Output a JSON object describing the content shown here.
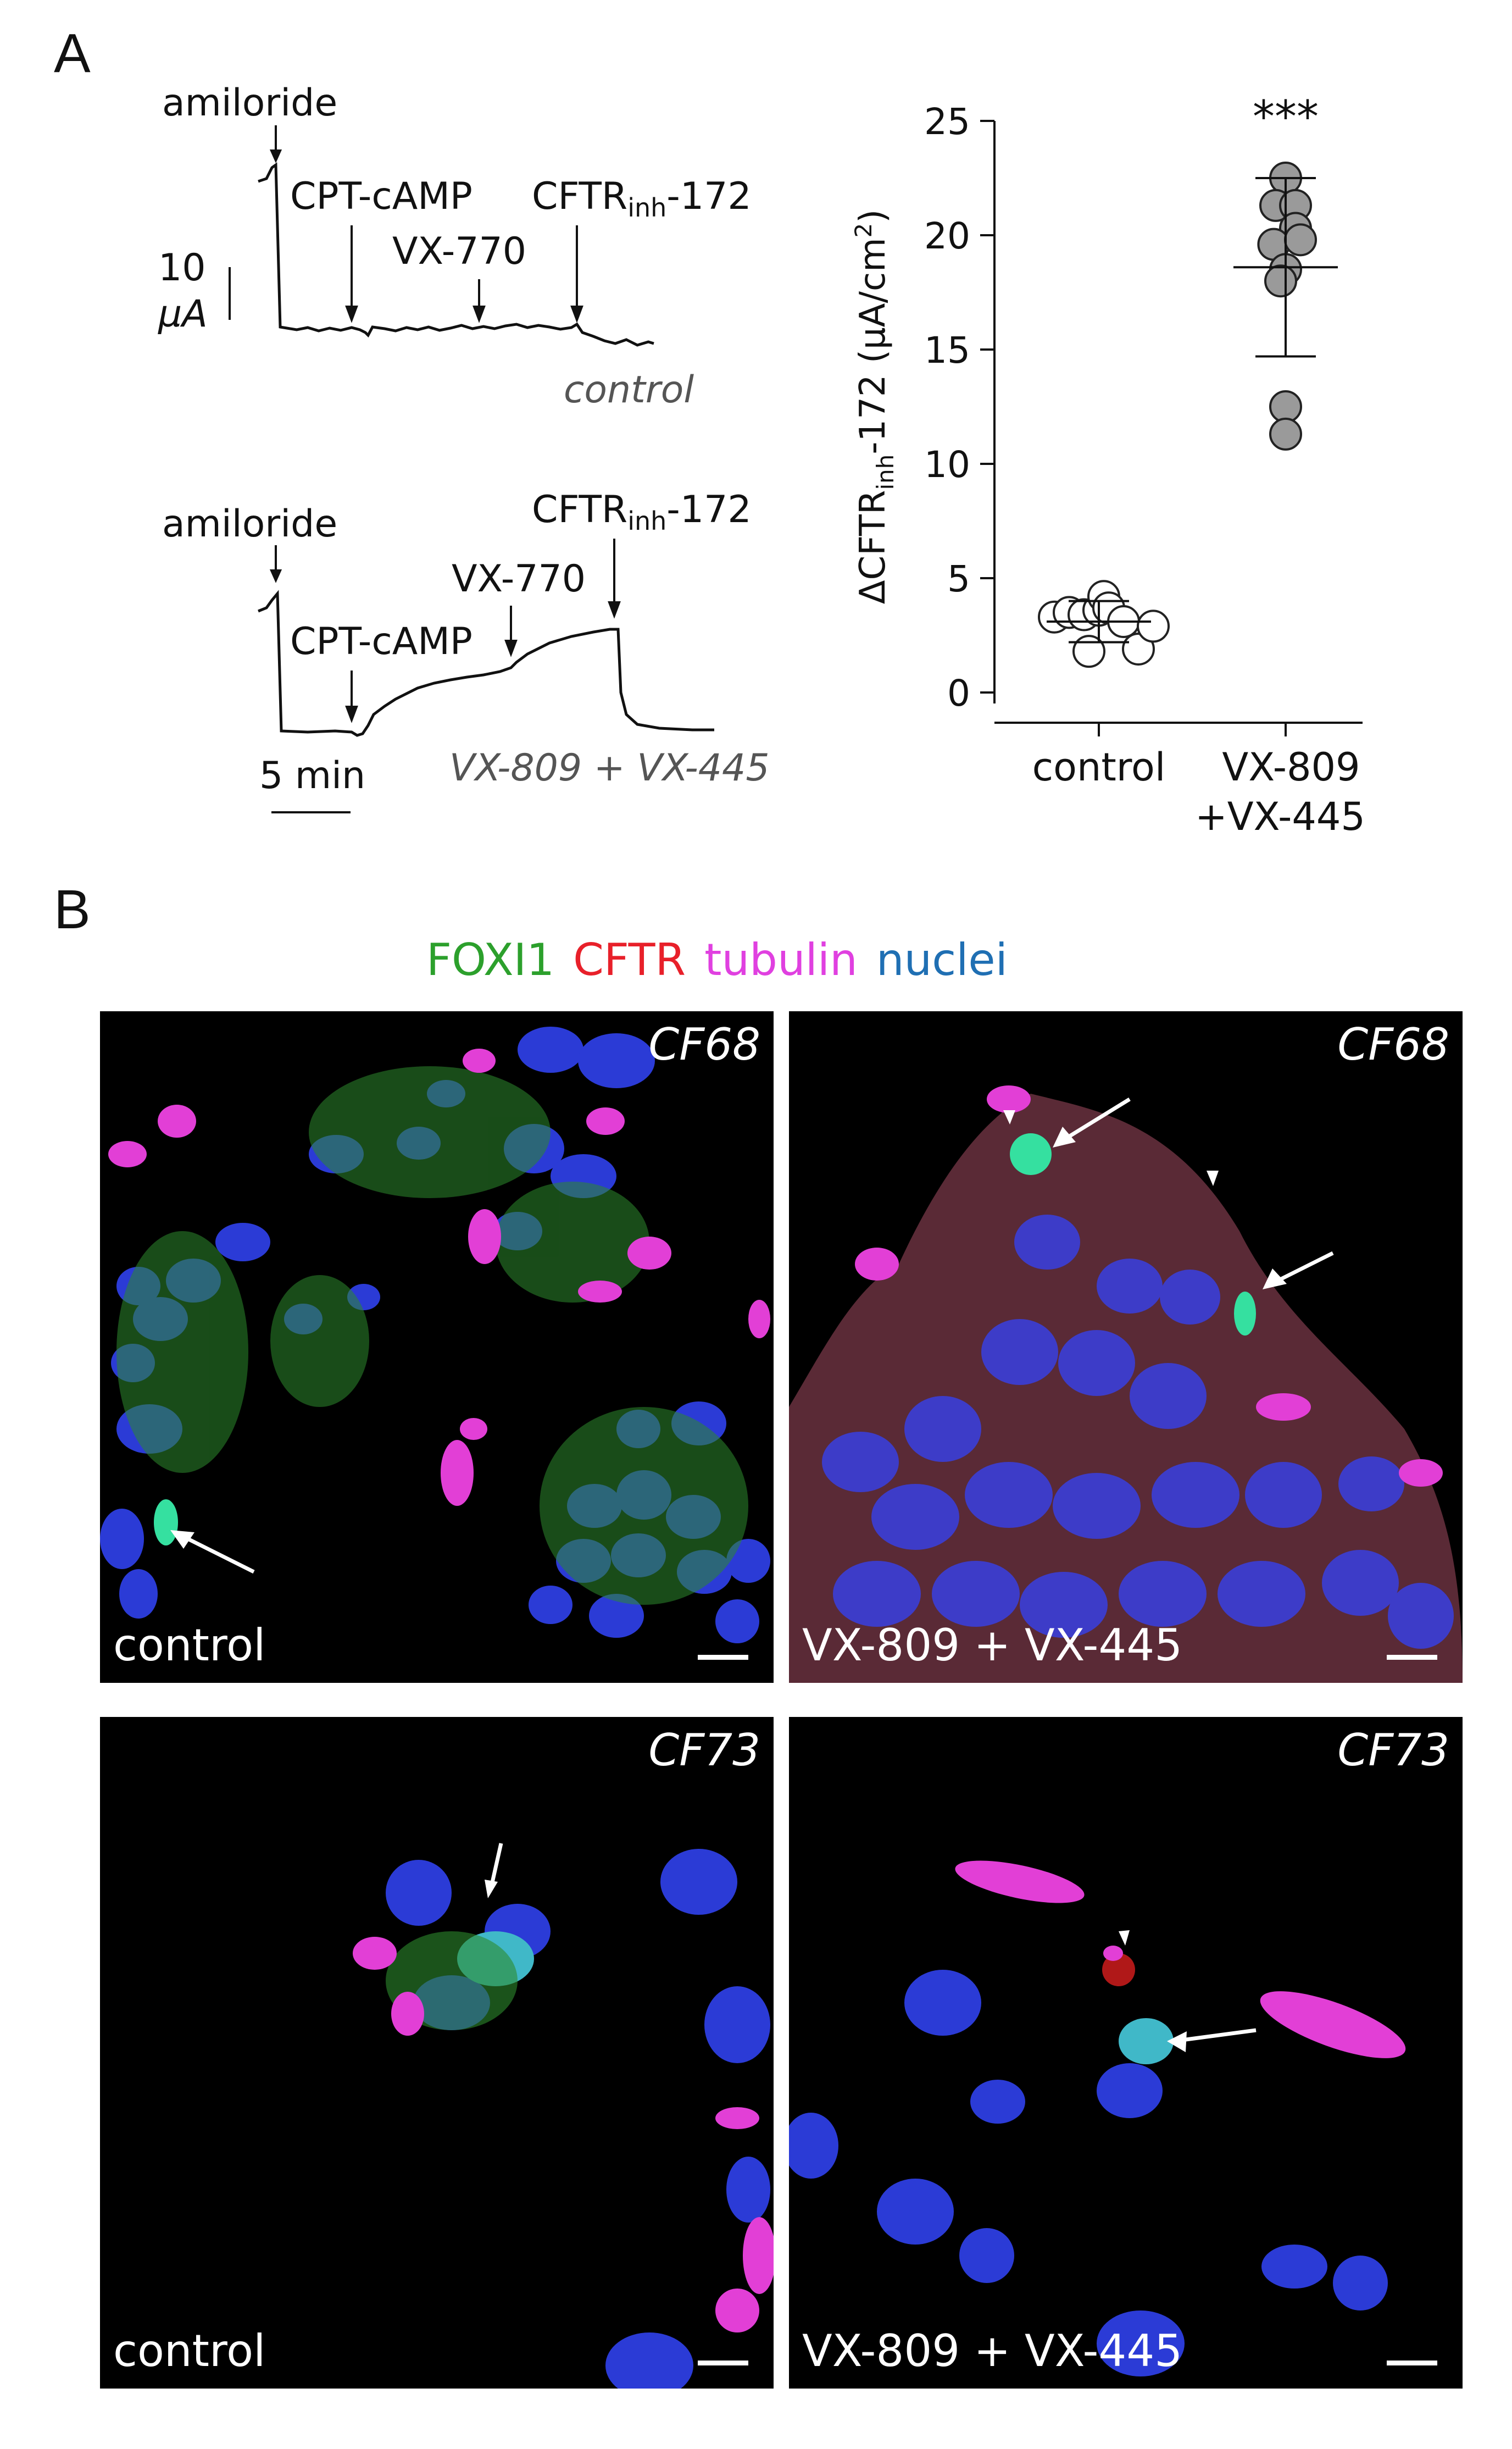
{
  "panel_a": {
    "letter": "A",
    "trace_top": {
      "amiloride": "amiloride",
      "cpt": "CPT-cAMP",
      "vx770": "VX-770",
      "cftr_main": "CFTR",
      "cftr_sub": "inh",
      "cftr_suffix": "-172",
      "condition": "control",
      "scale_current_value": "10",
      "scale_current_unit": "µA"
    },
    "trace_bottom": {
      "amiloride": "amiloride",
      "cpt": "CPT-cAMP",
      "vx770": "VX-770",
      "cftr_main": "CFTR",
      "cftr_sub": "inh",
      "cftr_suffix": "-172",
      "condition": "VX-809 + VX-445",
      "scale_time": "5 min"
    }
  },
  "chart_data": {
    "type": "scatter",
    "ylabel_prefix": "ΔCFTR",
    "ylabel_sub": "inh",
    "ylabel_suffix": "-172 (µA/cm",
    "ylabel_sup": "2",
    "ylabel_close": ")",
    "ylim": [
      0,
      25
    ],
    "yticks": [
      0,
      5,
      10,
      15,
      20,
      25
    ],
    "categories": [
      "control",
      "VX-809",
      "+VX-445"
    ],
    "significance": "***",
    "series": [
      {
        "name": "control",
        "fill": "#ffffff",
        "mean": 3.1,
        "sd": 0.9,
        "points": [
          {
            "x": -0.45,
            "y": 3.3
          },
          {
            "x": -0.3,
            "y": 3.5
          },
          {
            "x": -0.15,
            "y": 3.4
          },
          {
            "x": 0.0,
            "y": 3.6
          },
          {
            "x": 0.05,
            "y": 4.2
          },
          {
            "x": 0.1,
            "y": 3.7
          },
          {
            "x": 0.25,
            "y": 3.1
          },
          {
            "x": 0.4,
            "y": 1.9
          },
          {
            "x": -0.1,
            "y": 1.8
          },
          {
            "x": 0.55,
            "y": 2.9
          }
        ]
      },
      {
        "name": "VX-809 +VX-445",
        "fill": "#9a9a9a",
        "mean": 18.6,
        "sd": 3.9,
        "points": [
          {
            "x": 0.0,
            "y": 22.5
          },
          {
            "x": -0.1,
            "y": 21.3
          },
          {
            "x": 0.1,
            "y": 21.3
          },
          {
            "x": 0.1,
            "y": 20.3
          },
          {
            "x": -0.12,
            "y": 19.6
          },
          {
            "x": 0.15,
            "y": 19.8
          },
          {
            "x": 0.0,
            "y": 18.5
          },
          {
            "x": -0.05,
            "y": 18.0
          },
          {
            "x": 0.0,
            "y": 12.5
          },
          {
            "x": 0.0,
            "y": 11.3
          }
        ]
      }
    ]
  },
  "panel_b": {
    "letter": "B",
    "legend": [
      {
        "label": "FOXI1",
        "color": "#2ca02c"
      },
      {
        "label": "CFTR",
        "color": "#e8202a"
      },
      {
        "label": "tubulin",
        "color": "#e040e0"
      },
      {
        "label": "nuclei",
        "color": "#1f6fb3"
      }
    ],
    "images": [
      {
        "sample": "CF68",
        "condition": "control"
      },
      {
        "sample": "CF68",
        "condition": "VX-809 + VX-445"
      },
      {
        "sample": "CF73",
        "condition": "control"
      },
      {
        "sample": "CF73",
        "condition": "VX-809 + VX-445"
      }
    ]
  }
}
